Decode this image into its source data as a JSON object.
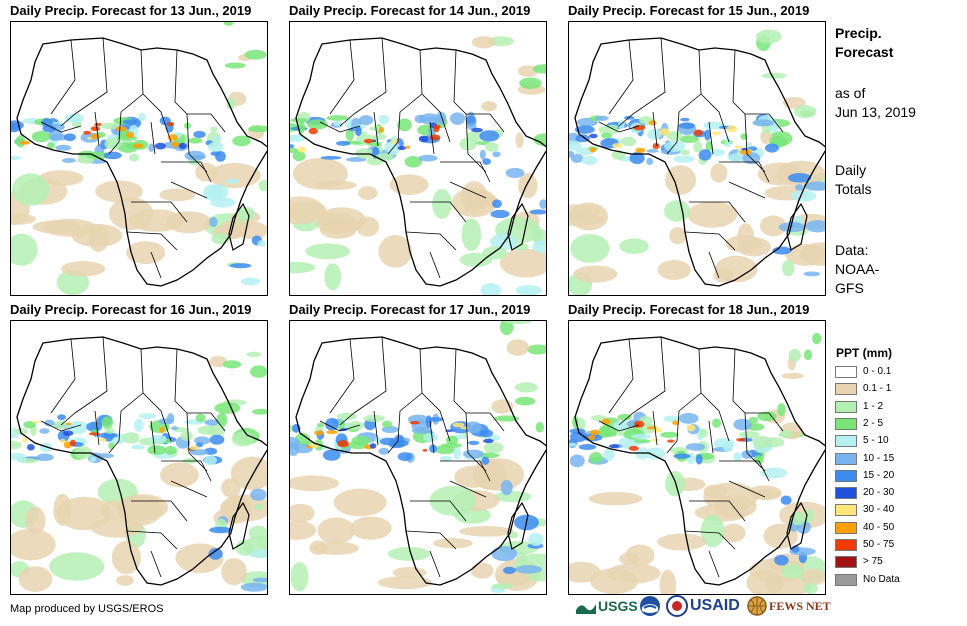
{
  "panels": [
    {
      "title": "Daily Precip. Forecast for 13 Jun., 2019"
    },
    {
      "title": "Daily Precip. Forecast for 14 Jun., 2019"
    },
    {
      "title": "Daily Precip. Forecast for 15 Jun., 2019"
    },
    {
      "title": "Daily Precip. Forecast for 16 Jun., 2019"
    },
    {
      "title": "Daily Precip. Forecast for 17 Jun., 2019"
    },
    {
      "title": "Daily Precip. Forecast for 18 Jun., 2019"
    }
  ],
  "sidebar": {
    "title_line1": "Precip.",
    "title_line2": "Forecast",
    "asof_line1": "as of",
    "asof_line2": "Jun 13, 2019",
    "totals_line1": "Daily",
    "totals_line2": "Totals",
    "data_line1": "Data:",
    "data_line2": "NOAA-",
    "data_line3": "GFS"
  },
  "legend": {
    "title": "PPT (mm)",
    "items": [
      {
        "label": "0 - 0.1",
        "color": "#ffffff"
      },
      {
        "label": "0.1 - 1",
        "color": "#e8d4b0"
      },
      {
        "label": "1 - 2",
        "color": "#b4f0b4"
      },
      {
        "label": "2 - 5",
        "color": "#78e678"
      },
      {
        "label": "5 - 10",
        "color": "#b4f0f0"
      },
      {
        "label": "10 - 15",
        "color": "#78b4f0"
      },
      {
        "label": "15 - 20",
        "color": "#3c8cf0"
      },
      {
        "label": "20 - 30",
        "color": "#1e50dc"
      },
      {
        "label": "30 - 40",
        "color": "#ffe678"
      },
      {
        "label": "40 - 50",
        "color": "#ffa000"
      },
      {
        "label": "50 - 75",
        "color": "#f03c00"
      },
      {
        "label": "> 75",
        "color": "#a01414"
      },
      {
        "label": "No Data",
        "color": "#999999"
      }
    ]
  },
  "footer": {
    "credit": "Map produced by USGS/EROS",
    "logos": {
      "usgs": "USGS",
      "noaa": "NOAA",
      "usaid": "USAID",
      "fewsnet": "FEWS NET"
    }
  }
}
